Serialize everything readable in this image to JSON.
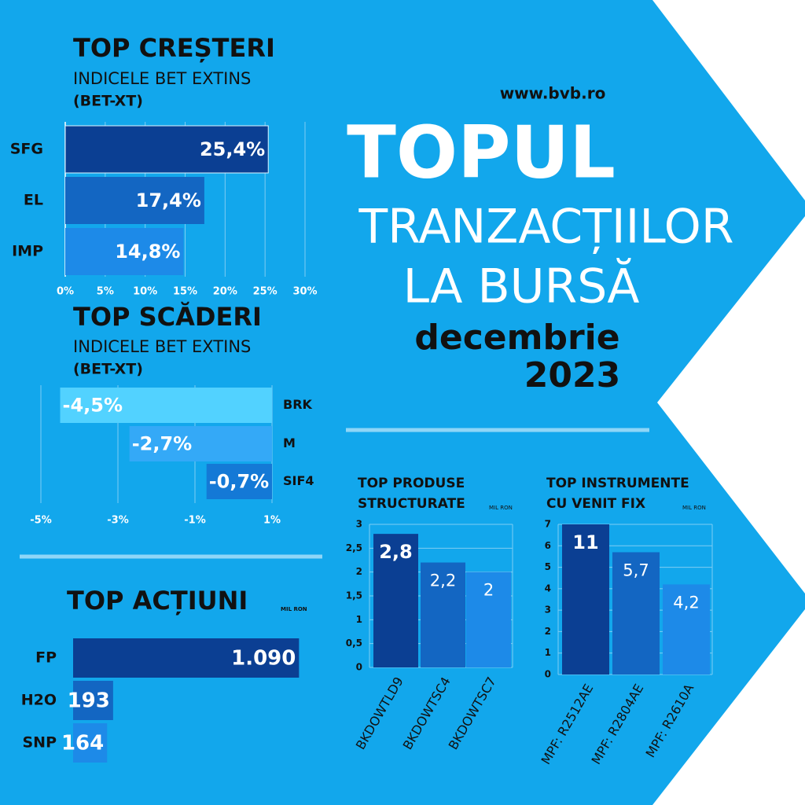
{
  "header": {
    "url": "www.bvb.ro",
    "title": "TOPUL",
    "subtitle_lines": [
      "TRANZACȚIILOR",
      "LA BURSĂ"
    ],
    "month": "decembrie",
    "year": "2023"
  },
  "chart_data": [
    {
      "type": "hbar",
      "title": "TOP CREȘTERI",
      "subtitle_lines": [
        "INDICELE BET EXTINS",
        "(BET-XT)"
      ],
      "categories": [
        "SFG",
        "EL",
        "IMP"
      ],
      "values": [
        25.4,
        17.4,
        14.8
      ],
      "value_labels": [
        "25,4%",
        "17,4%",
        "14,8%"
      ],
      "colors": [
        "#0b3f93",
        "#1366c2",
        "#1d8ae8"
      ],
      "xlim": [
        0,
        30
      ],
      "xticks": [
        {
          "value": 0,
          "label": "0%"
        },
        {
          "value": 5,
          "label": "5%"
        },
        {
          "value": 10,
          "label": "10%"
        },
        {
          "value": 15,
          "label": "15%"
        },
        {
          "value": 20,
          "label": "20%"
        },
        {
          "value": 25,
          "label": "25%"
        },
        {
          "value": 30,
          "label": "30%"
        }
      ],
      "grid": true
    },
    {
      "type": "hbar",
      "title": "TOP SCĂDERI",
      "subtitle_lines": [
        "INDICELE BET EXTINS",
        "(BET-XT)"
      ],
      "categories": [
        "BRK",
        "M",
        "SIF4"
      ],
      "values": [
        -4.5,
        -2.7,
        -0.7
      ],
      "value_labels": [
        "-4,5%",
        "-2,7%",
        "-0,7%"
      ],
      "colors": [
        "#52d2ff",
        "#34a9f7",
        "#1479d6"
      ],
      "xlim": [
        -5,
        1
      ],
      "xticks": [
        {
          "value": -5,
          "label": "-5%"
        },
        {
          "value": -3,
          "label": "-3%"
        },
        {
          "value": -1,
          "label": "-1%"
        },
        {
          "value": 1,
          "label": "1%"
        }
      ],
      "grid": true
    },
    {
      "type": "hbar",
      "title": "TOP ACȚIUNI",
      "unit": "MIL RON",
      "categories": [
        "FP",
        "H2O",
        "SNP"
      ],
      "values": [
        1090,
        193,
        164
      ],
      "value_labels": [
        "1.090",
        "193",
        "164"
      ],
      "colors": [
        "#0b3f93",
        "#1366c2",
        "#1d8ae8"
      ],
      "xlim": [
        0,
        1100
      ],
      "grid": false
    },
    {
      "type": "bar",
      "title_lines": [
        "TOP PRODUSE",
        "STRUCTURATE"
      ],
      "unit": "MIL RON",
      "categories": [
        "BKDOWTLD9",
        "BKDOWTSC4",
        "BKDOWTSC7"
      ],
      "values": [
        2.8,
        2.2,
        2
      ],
      "value_labels": [
        "2,8",
        "2,2",
        "2"
      ],
      "colors": [
        "#0b3f93",
        "#1366c2",
        "#1d8ae8"
      ],
      "ylim": [
        0,
        3
      ],
      "yticks": [
        0,
        {
          "value": 0.5,
          "label": "0,5"
        },
        1,
        {
          "value": 1.5,
          "label": "1,5"
        },
        2,
        {
          "value": 2.5,
          "label": "2,5"
        },
        3
      ]
    },
    {
      "type": "bar",
      "title_lines": [
        "TOP INSTRUMENTE",
        "CU VENIT FIX"
      ],
      "unit": "MIL RON",
      "categories": [
        "MPF: R2512AE",
        "MPF: R2804AE",
        "MPF: R2610A"
      ],
      "values": [
        11,
        5.7,
        4.2
      ],
      "value_labels": [
        "11",
        "5,7",
        "4,2"
      ],
      "colors": [
        "#0b3f93",
        "#1366c2",
        "#1d8ae8"
      ],
      "ylim": [
        0,
        7
      ],
      "yticks": [
        0,
        1,
        2,
        3,
        4,
        5,
        6,
        7
      ]
    }
  ]
}
